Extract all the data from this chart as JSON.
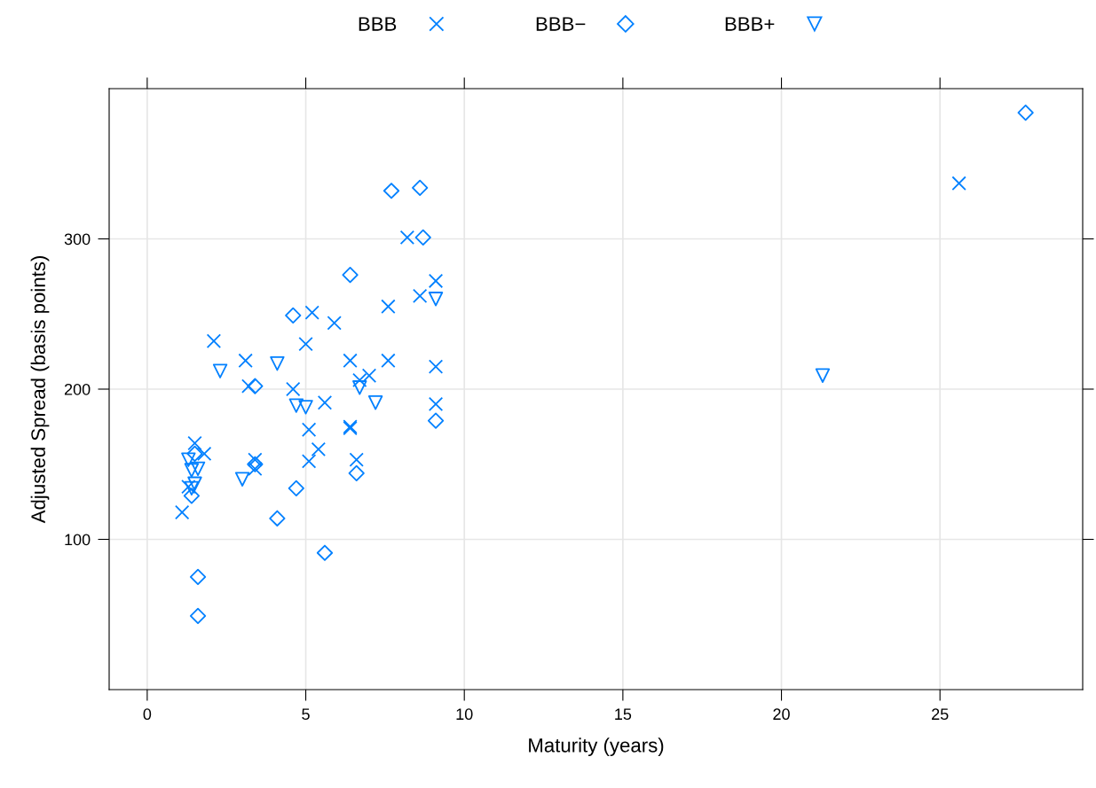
{
  "chart_data": {
    "type": "scatter",
    "xlabel": "Maturity (years)",
    "ylabel": "Adjusted Spread (basis points)",
    "xlim": [
      -1.2,
      29.5
    ],
    "ylim": [
      0,
      400
    ],
    "xticks": [
      0,
      5,
      10,
      15,
      20,
      25
    ],
    "yticks": [
      100,
      200,
      300
    ],
    "grid": true,
    "legend": "top",
    "series": [
      {
        "name": "BBB",
        "color": "#0080ff",
        "marker": "cross",
        "x": [
          1.1,
          1.3,
          1.5,
          1.8,
          2.1,
          3.1,
          3.2,
          3.4,
          3.4,
          4.6,
          5.0,
          5.1,
          5.1,
          5.2,
          5.4,
          5.6,
          5.9,
          6.4,
          6.4,
          6.4,
          6.6,
          6.7,
          7.0,
          7.6,
          7.6,
          8.2,
          8.6,
          9.1,
          9.1,
          9.1,
          25.6
        ],
        "values": [
          118,
          135,
          164,
          157,
          232,
          219,
          202,
          153,
          147,
          200,
          230,
          173,
          152,
          251,
          160,
          191,
          244,
          219,
          174,
          175,
          153,
          206,
          209,
          255,
          219,
          301,
          262,
          272,
          215,
          190,
          337
        ]
      },
      {
        "name": "BBB−",
        "color": "#0080ff",
        "marker": "diamond",
        "x": [
          1.6,
          1.6,
          1.4,
          1.5,
          3.4,
          3.4,
          4.1,
          4.7,
          5.6,
          4.6,
          6.4,
          6.6,
          7.7,
          8.6,
          8.7,
          9.1,
          27.7
        ],
        "values": [
          75,
          49,
          129,
          157,
          202,
          150,
          114,
          134,
          91,
          249,
          276,
          144,
          332,
          334,
          301,
          179,
          384
        ]
      },
      {
        "name": "BBB+",
        "color": "#0080ff",
        "marker": "triangle",
        "x": [
          1.3,
          1.4,
          1.6,
          1.5,
          1.4,
          2.3,
          3.0,
          4.1,
          4.7,
          5.0,
          6.7,
          7.2,
          9.1,
          21.3
        ],
        "values": [
          153,
          146,
          147,
          137,
          134,
          212,
          140,
          217,
          189,
          188,
          201,
          191,
          260,
          209
        ]
      }
    ]
  }
}
